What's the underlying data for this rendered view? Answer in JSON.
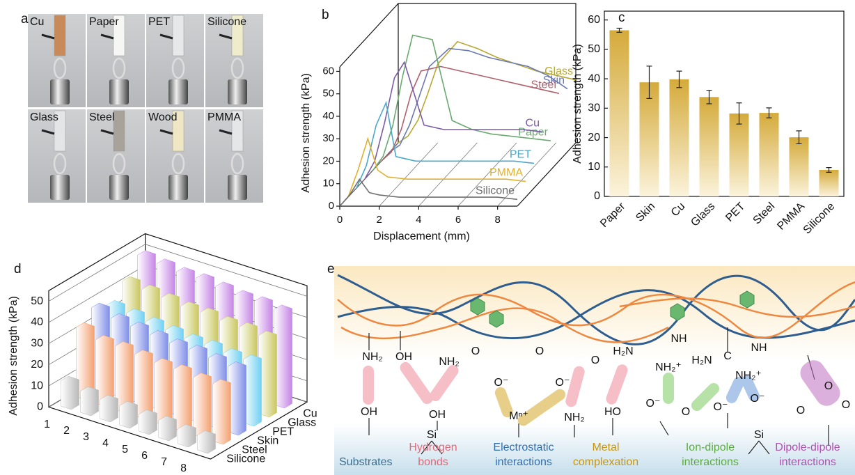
{
  "panel_labels": [
    "a",
    "b",
    "c",
    "d",
    "e"
  ],
  "photos": {
    "labels": [
      "Cu",
      "Paper",
      "PET",
      "Silicone",
      "Glass",
      "Steel",
      "Wood",
      "PMMA"
    ]
  },
  "chart_data": [
    {
      "type": "line3d",
      "xlabel": "Displacement (mm)",
      "ylabel": "Adhesion strength (kPa)",
      "xlim": [
        0,
        9
      ],
      "xticks": [
        0,
        2,
        4,
        6,
        8
      ],
      "ylim": [
        0,
        62
      ],
      "yticks": [
        0,
        10,
        20,
        30,
        40,
        50,
        60
      ],
      "x": [
        0,
        0.5,
        1,
        1.5,
        2,
        3,
        4,
        5,
        6,
        7,
        8,
        9
      ],
      "series": [
        {
          "name": "Silicone",
          "color": "#6f6f6f",
          "values": [
            0,
            5,
            12,
            6,
            5,
            4,
            4,
            4,
            4,
            4,
            4,
            3
          ]
        },
        {
          "name": "PMMA",
          "color": "#e0b030",
          "values": [
            0,
            12,
            26,
            12,
            9,
            8,
            8,
            8,
            8,
            8,
            8,
            7
          ]
        },
        {
          "name": "PET",
          "color": "#4aa8c8",
          "values": [
            0,
            10,
            28,
            38,
            14,
            12,
            12,
            12,
            12,
            12,
            12,
            11
          ]
        },
        {
          "name": "Cu",
          "color": "#7b5aa6",
          "values": [
            0,
            8,
            25,
            45,
            52,
            24,
            22,
            22,
            22,
            22,
            22,
            21
          ]
        },
        {
          "name": "Paper",
          "color": "#6aaa70",
          "values": [
            0,
            6,
            20,
            42,
            60,
            58,
            22,
            18,
            16,
            15,
            14,
            13
          ]
        },
        {
          "name": "Steel",
          "color": "#b0606a",
          "values": [
            0,
            4,
            14,
            30,
            40,
            42,
            40,
            38,
            36,
            34,
            32,
            30
          ]
        },
        {
          "name": "Skin",
          "color": "#6a78b0",
          "values": [
            0,
            3,
            12,
            25,
            38,
            46,
            45,
            42,
            40,
            38,
            34,
            28
          ]
        },
        {
          "name": "Glass",
          "color": "#b8a830",
          "values": [
            0,
            3,
            10,
            22,
            35,
            45,
            42,
            38,
            35,
            32,
            30,
            28
          ]
        }
      ]
    },
    {
      "type": "bar",
      "ylabel": "Adhesion strength (kPa)",
      "categories": [
        "Paper",
        "Skin",
        "Cu",
        "Glass",
        "PET",
        "Steel",
        "PMMA",
        "Silicone"
      ],
      "values": [
        56.5,
        38.8,
        39.8,
        33.8,
        28.2,
        28.4,
        20.1,
        9.0
      ],
      "errors": [
        0.7,
        5.5,
        2.8,
        2.3,
        3.6,
        1.7,
        2.2,
        0.8
      ],
      "color": "#d4aa3a",
      "ylim": [
        0,
        63
      ],
      "yticks": [
        0,
        10,
        20,
        30,
        40,
        50,
        60
      ]
    },
    {
      "type": "bar3d",
      "ylabel": "Adhesion strength (kPa)",
      "categories": [
        "1",
        "2",
        "3",
        "4",
        "5",
        "6",
        "7",
        "8"
      ],
      "ylim": [
        0,
        55
      ],
      "yticks": [
        0,
        10,
        20,
        30,
        40,
        50
      ],
      "series": [
        {
          "name": "Silicone",
          "color": "#b8b8b8",
          "values": [
            12,
            10,
            9,
            9,
            8,
            8,
            7,
            7
          ]
        },
        {
          "name": "Steel",
          "color": "#f4a070",
          "values": [
            33,
            30,
            30,
            29,
            28,
            28,
            27,
            27
          ]
        },
        {
          "name": "Skin",
          "color": "#7f8ee8",
          "values": [
            38,
            36,
            35,
            34,
            33,
            33,
            32,
            31
          ]
        },
        {
          "name": "PET",
          "color": "#6fd0f2",
          "values": [
            35,
            34,
            33,
            32,
            31,
            31,
            30,
            30
          ]
        },
        {
          "name": "Glass",
          "color": "#c9c860",
          "values": [
            42,
            41,
            40,
            39,
            39,
            38,
            38,
            37
          ]
        },
        {
          "name": "Cu",
          "color": "#c585e6",
          "values": [
            50,
            49,
            48,
            48,
            47,
            46,
            46,
            45
          ]
        }
      ]
    }
  ],
  "diagram": {
    "groups": [
      "NH₂",
      "OH",
      "NH₂",
      "O",
      "O⁻",
      "O",
      "O⁻",
      "O",
      "H₂N",
      "NH",
      "NH₂⁺",
      "H₂N",
      "NH",
      "NH₂⁺",
      "OH",
      "OH",
      "Si",
      "Mⁿ⁺",
      "NH₂",
      "HO",
      "O⁻",
      "O",
      "O⁻",
      "O⁻",
      "Si",
      "O",
      "O",
      "O",
      "C"
    ],
    "categories": [
      {
        "lines": [
          "Substrates"
        ],
        "color": "#3a6f8f"
      },
      {
        "lines": [
          "Hydrogen",
          "bonds"
        ],
        "color": "#e06878"
      },
      {
        "lines": [
          "Electrostatic",
          "interactions"
        ],
        "color": "#2f6fb0"
      },
      {
        "lines": [
          "Metal",
          "complexation"
        ],
        "color": "#c8960a"
      },
      {
        "lines": [
          "Ion-dipole",
          "interactions"
        ],
        "color": "#5aae3c"
      },
      {
        "lines": [
          "Dipole-dipole",
          "interactions"
        ],
        "color": "#b050b0"
      }
    ]
  }
}
